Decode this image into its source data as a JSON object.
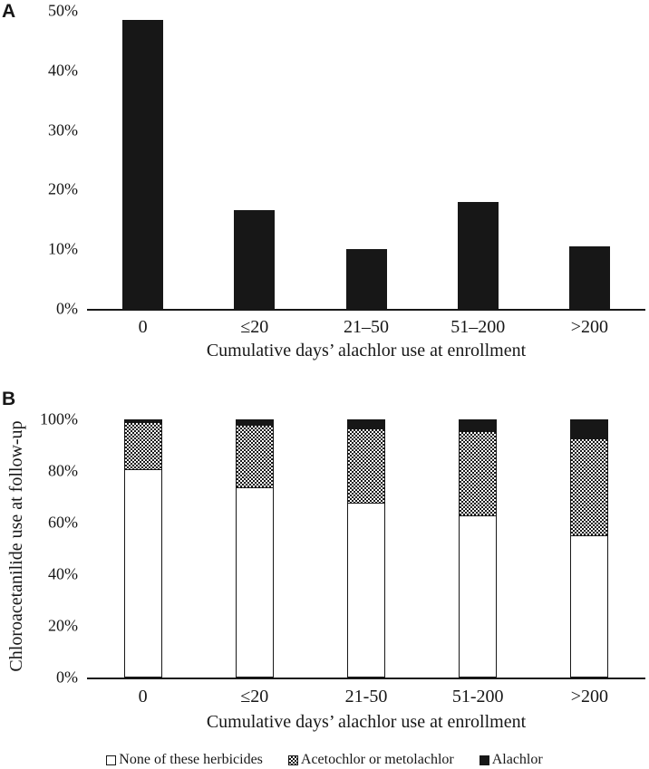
{
  "figure": {
    "panel_a_label": "A",
    "panel_b_label": "B",
    "colors": {
      "ink": "#171717",
      "background": "#ffffff"
    }
  },
  "chart_data": [
    {
      "type": "bar",
      "panel": "A",
      "title": "",
      "xlabel": "Cumulative days’ alachlor use at enrollment",
      "ylabel": "",
      "ylim": [
        0,
        50
      ],
      "grid": false,
      "bar_fill": "black",
      "yticks": [
        {
          "v": 0,
          "label": "0%"
        },
        {
          "v": 10,
          "label": "10%"
        },
        {
          "v": 20,
          "label": "20%"
        },
        {
          "v": 30,
          "label": "30%"
        },
        {
          "v": 40,
          "label": "40%"
        },
        {
          "v": 50,
          "label": "50%"
        }
      ],
      "categories": [
        "0",
        "≤20",
        "21–50",
        "51–200",
        ">200"
      ],
      "values": [
        48.5,
        16.5,
        10,
        18,
        10.5
      ]
    },
    {
      "type": "stacked-bar",
      "panel": "B",
      "title": "",
      "xlabel": "Cumulative days’ alachlor use at enrollment",
      "ylabel": "Chloroacetanilide use at follow-up",
      "ylim": [
        0,
        100
      ],
      "grid": false,
      "legend_position": "bottom",
      "yticks": [
        {
          "v": 0,
          "label": "0%"
        },
        {
          "v": 20,
          "label": "20%"
        },
        {
          "v": 40,
          "label": "40%"
        },
        {
          "v": 60,
          "label": "60%"
        },
        {
          "v": 80,
          "label": "80%"
        },
        {
          "v": 100,
          "label": "100%"
        }
      ],
      "categories": [
        "0",
        "≤20",
        "21-50",
        "51-200",
        ">200"
      ],
      "series": [
        {
          "name": "None of these herbicides",
          "fill": "white",
          "values": [
            81,
            74,
            68,
            63,
            55
          ]
        },
        {
          "name": "Acetochlor or metolachlor",
          "fill": "dotted",
          "values": [
            18,
            24,
            28.5,
            32.5,
            37.5
          ]
        },
        {
          "name": "Alachlor",
          "fill": "black",
          "values": [
            1,
            2,
            3.5,
            4.5,
            7.5
          ]
        }
      ]
    }
  ]
}
